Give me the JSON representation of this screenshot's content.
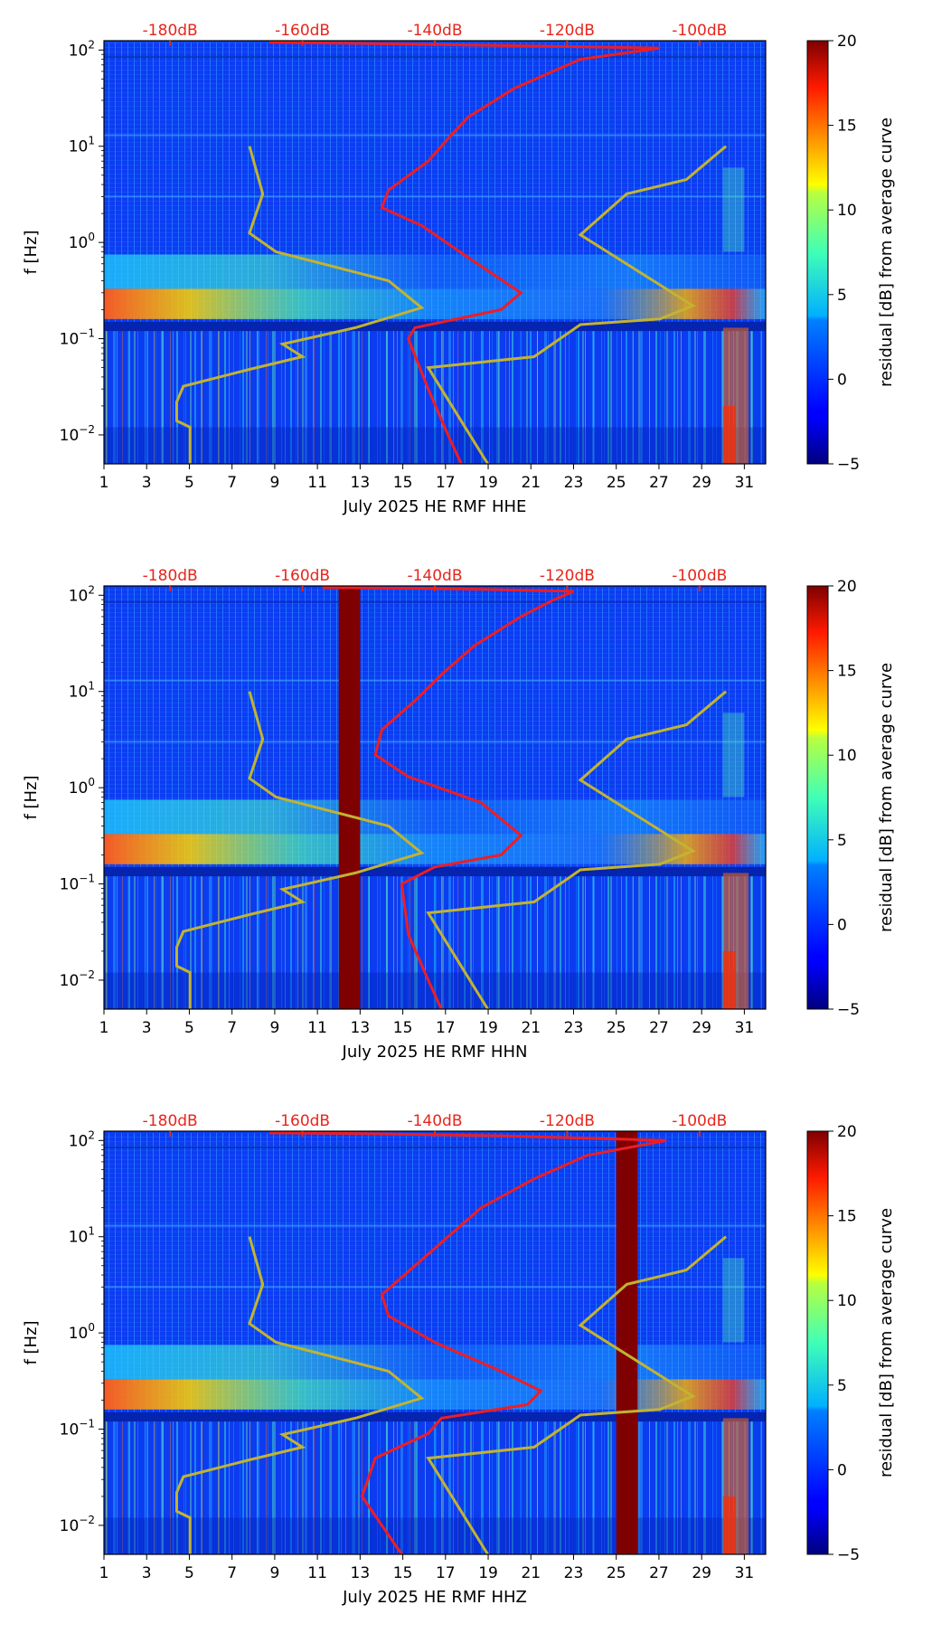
{
  "chart_data": [
    {
      "type": "heatmap",
      "channel": "HHE",
      "xlabel": "July 2025 HE RMF  HHE",
      "ylabel": "f [Hz]",
      "x_ticks": [
        "1",
        "3",
        "5",
        "7",
        "9",
        "11",
        "13",
        "15",
        "17",
        "19",
        "21",
        "23",
        "25",
        "27",
        "29",
        "31"
      ],
      "xlim": [
        1,
        32
      ],
      "y_ticks": [
        {
          "base": "10",
          "exp": "−2",
          "value": 0.01
        },
        {
          "base": "10",
          "exp": "−1",
          "value": 0.1
        },
        {
          "base": "10",
          "exp": "0",
          "value": 1
        },
        {
          "base": "10",
          "exp": "1",
          "value": 10
        },
        {
          "base": "10",
          "exp": "2",
          "value": 100
        }
      ],
      "ylim": [
        0.005,
        125
      ],
      "db_axis": [
        "-180dB",
        "-160dB",
        "-140dB",
        "-120dB",
        "-100dB"
      ],
      "db_range": [
        -190,
        -90
      ],
      "colorbar": {
        "label": "residual [dB] from average curve",
        "ticks": [
          "−5",
          "0",
          "5",
          "10",
          "15",
          "20"
        ],
        "range": [
          -5,
          20
        ]
      },
      "gap_days": [],
      "noise_model_low": [
        {
          "db": -177,
          "f": 0.005
        },
        {
          "db": -177,
          "f": 0.012
        },
        {
          "db": -179,
          "f": 0.014
        },
        {
          "db": -179,
          "f": 0.022
        },
        {
          "db": -178,
          "f": 0.032
        },
        {
          "db": -168,
          "f": 0.048
        },
        {
          "db": -160,
          "f": 0.065
        },
        {
          "db": -163,
          "f": 0.088
        },
        {
          "db": -152,
          "f": 0.13
        },
        {
          "db": -142,
          "f": 0.21
        },
        {
          "db": -147,
          "f": 0.4
        },
        {
          "db": -164,
          "f": 0.8
        },
        {
          "db": -168,
          "f": 1.25
        },
        {
          "db": -166,
          "f": 3.2
        },
        {
          "db": -168,
          "f": 10
        }
      ],
      "noise_model_high": [
        {
          "db": -132,
          "f": 0.005
        },
        {
          "db": -141,
          "f": 0.05
        },
        {
          "db": -125,
          "f": 0.065
        },
        {
          "db": -118,
          "f": 0.14
        },
        {
          "db": -106,
          "f": 0.16
        },
        {
          "db": -101,
          "f": 0.22
        },
        {
          "db": -118,
          "f": 1.2
        },
        {
          "db": -111,
          "f": 3.2
        },
        {
          "db": -102,
          "f": 4.5
        },
        {
          "db": -96,
          "f": 10
        }
      ],
      "average_curve": [
        {
          "db": -136,
          "f": 0.005
        },
        {
          "db": -138,
          "f": 0.01
        },
        {
          "db": -141,
          "f": 0.03
        },
        {
          "db": -144,
          "f": 0.1
        },
        {
          "db": -143,
          "f": 0.13
        },
        {
          "db": -130,
          "f": 0.2
        },
        {
          "db": -127,
          "f": 0.3
        },
        {
          "db": -135,
          "f": 0.7
        },
        {
          "db": -142,
          "f": 1.5
        },
        {
          "db": -148,
          "f": 2.3
        },
        {
          "db": -147,
          "f": 3.5
        },
        {
          "db": -141,
          "f": 7
        },
        {
          "db": -138,
          "f": 12
        },
        {
          "db": -135,
          "f": 20
        },
        {
          "db": -128,
          "f": 40
        },
        {
          "db": -118,
          "f": 80
        },
        {
          "db": -106,
          "f": 105
        },
        {
          "db": -132,
          "f": 112
        },
        {
          "db": -154,
          "f": 118
        },
        {
          "db": -165,
          "f": 120
        }
      ]
    },
    {
      "type": "heatmap",
      "channel": "HHN",
      "xlabel": "July 2025 HE RMF  HHN",
      "ylabel": "f [Hz]",
      "x_ticks": [
        "1",
        "3",
        "5",
        "7",
        "9",
        "11",
        "13",
        "15",
        "17",
        "19",
        "21",
        "23",
        "25",
        "27",
        "29",
        "31"
      ],
      "xlim": [
        1,
        32
      ],
      "y_ticks": [
        {
          "base": "10",
          "exp": "−2",
          "value": 0.01
        },
        {
          "base": "10",
          "exp": "−1",
          "value": 0.1
        },
        {
          "base": "10",
          "exp": "0",
          "value": 1
        },
        {
          "base": "10",
          "exp": "1",
          "value": 10
        },
        {
          "base": "10",
          "exp": "2",
          "value": 100
        }
      ],
      "ylim": [
        0.005,
        125
      ],
      "db_axis": [
        "-180dB",
        "-160dB",
        "-140dB",
        "-120dB",
        "-100dB"
      ],
      "db_range": [
        -190,
        -90
      ],
      "colorbar": {
        "label": "residual [dB] from average curve",
        "ticks": [
          "−5",
          "0",
          "5",
          "10",
          "15",
          "20"
        ],
        "range": [
          -5,
          20
        ]
      },
      "gap_days": [
        [
          12,
          13
        ]
      ],
      "noise_model_low": [
        {
          "db": -177,
          "f": 0.005
        },
        {
          "db": -177,
          "f": 0.012
        },
        {
          "db": -179,
          "f": 0.014
        },
        {
          "db": -179,
          "f": 0.022
        },
        {
          "db": -178,
          "f": 0.032
        },
        {
          "db": -168,
          "f": 0.048
        },
        {
          "db": -160,
          "f": 0.065
        },
        {
          "db": -163,
          "f": 0.088
        },
        {
          "db": -152,
          "f": 0.13
        },
        {
          "db": -142,
          "f": 0.21
        },
        {
          "db": -147,
          "f": 0.4
        },
        {
          "db": -164,
          "f": 0.8
        },
        {
          "db": -168,
          "f": 1.25
        },
        {
          "db": -166,
          "f": 3.2
        },
        {
          "db": -168,
          "f": 10
        }
      ],
      "noise_model_high": [
        {
          "db": -132,
          "f": 0.005
        },
        {
          "db": -141,
          "f": 0.05
        },
        {
          "db": -125,
          "f": 0.065
        },
        {
          "db": -118,
          "f": 0.14
        },
        {
          "db": -106,
          "f": 0.16
        },
        {
          "db": -101,
          "f": 0.22
        },
        {
          "db": -118,
          "f": 1.2
        },
        {
          "db": -111,
          "f": 3.2
        },
        {
          "db": -102,
          "f": 4.5
        },
        {
          "db": -96,
          "f": 10
        }
      ],
      "average_curve": [
        {
          "db": -139,
          "f": 0.005
        },
        {
          "db": -141,
          "f": 0.01
        },
        {
          "db": -144,
          "f": 0.03
        },
        {
          "db": -145,
          "f": 0.1
        },
        {
          "db": -140,
          "f": 0.15
        },
        {
          "db": -130,
          "f": 0.2
        },
        {
          "db": -127,
          "f": 0.32
        },
        {
          "db": -133,
          "f": 0.7
        },
        {
          "db": -144,
          "f": 1.3
        },
        {
          "db": -149,
          "f": 2.2
        },
        {
          "db": -148,
          "f": 4
        },
        {
          "db": -143,
          "f": 8
        },
        {
          "db": -139,
          "f": 15
        },
        {
          "db": -134,
          "f": 30
        },
        {
          "db": -127,
          "f": 60
        },
        {
          "db": -122,
          "f": 90
        },
        {
          "db": -119,
          "f": 110
        },
        {
          "db": -140,
          "f": 118
        },
        {
          "db": -157,
          "f": 120
        }
      ]
    },
    {
      "type": "heatmap",
      "channel": "HHZ",
      "xlabel": "July 2025 HE RMF  HHZ",
      "ylabel": "f [Hz]",
      "x_ticks": [
        "1",
        "3",
        "5",
        "7",
        "9",
        "11",
        "13",
        "15",
        "17",
        "19",
        "21",
        "23",
        "25",
        "27",
        "29",
        "31"
      ],
      "xlim": [
        1,
        32
      ],
      "y_ticks": [
        {
          "base": "10",
          "exp": "−2",
          "value": 0.01
        },
        {
          "base": "10",
          "exp": "−1",
          "value": 0.1
        },
        {
          "base": "10",
          "exp": "0",
          "value": 1
        },
        {
          "base": "10",
          "exp": "1",
          "value": 10
        },
        {
          "base": "10",
          "exp": "2",
          "value": 100
        }
      ],
      "ylim": [
        0.005,
        125
      ],
      "db_axis": [
        "-180dB",
        "-160dB",
        "-140dB",
        "-120dB",
        "-100dB"
      ],
      "db_range": [
        -190,
        -90
      ],
      "colorbar": {
        "label": "residual [dB] from average curve",
        "ticks": [
          "−5",
          "0",
          "5",
          "10",
          "15",
          "20"
        ],
        "range": [
          -5,
          20
        ]
      },
      "gap_days": [
        [
          25,
          26
        ]
      ],
      "noise_model_low": [
        {
          "db": -177,
          "f": 0.005
        },
        {
          "db": -177,
          "f": 0.012
        },
        {
          "db": -179,
          "f": 0.014
        },
        {
          "db": -179,
          "f": 0.022
        },
        {
          "db": -178,
          "f": 0.032
        },
        {
          "db": -168,
          "f": 0.048
        },
        {
          "db": -160,
          "f": 0.065
        },
        {
          "db": -163,
          "f": 0.088
        },
        {
          "db": -152,
          "f": 0.13
        },
        {
          "db": -142,
          "f": 0.21
        },
        {
          "db": -147,
          "f": 0.4
        },
        {
          "db": -164,
          "f": 0.8
        },
        {
          "db": -168,
          "f": 1.25
        },
        {
          "db": -166,
          "f": 3.2
        },
        {
          "db": -168,
          "f": 10
        }
      ],
      "noise_model_high": [
        {
          "db": -132,
          "f": 0.005
        },
        {
          "db": -141,
          "f": 0.05
        },
        {
          "db": -125,
          "f": 0.065
        },
        {
          "db": -118,
          "f": 0.14
        },
        {
          "db": -106,
          "f": 0.16
        },
        {
          "db": -101,
          "f": 0.22
        },
        {
          "db": -118,
          "f": 1.2
        },
        {
          "db": -111,
          "f": 3.2
        },
        {
          "db": -102,
          "f": 4.5
        },
        {
          "db": -96,
          "f": 10
        }
      ],
      "average_curve": [
        {
          "db": -145,
          "f": 0.005
        },
        {
          "db": -148,
          "f": 0.01
        },
        {
          "db": -151,
          "f": 0.02
        },
        {
          "db": -149,
          "f": 0.05
        },
        {
          "db": -141,
          "f": 0.09
        },
        {
          "db": -139,
          "f": 0.13
        },
        {
          "db": -126,
          "f": 0.18
        },
        {
          "db": -124,
          "f": 0.25
        },
        {
          "db": -130,
          "f": 0.4
        },
        {
          "db": -140,
          "f": 0.8
        },
        {
          "db": -147,
          "f": 1.5
        },
        {
          "db": -148,
          "f": 2.5
        },
        {
          "db": -143,
          "f": 5
        },
        {
          "db": -138,
          "f": 10
        },
        {
          "db": -133,
          "f": 20
        },
        {
          "db": -125,
          "f": 40
        },
        {
          "db": -117,
          "f": 70
        },
        {
          "db": -105,
          "f": 100
        },
        {
          "db": -130,
          "f": 112
        },
        {
          "db": -150,
          "f": 118
        },
        {
          "db": -165,
          "f": 120
        }
      ]
    }
  ]
}
